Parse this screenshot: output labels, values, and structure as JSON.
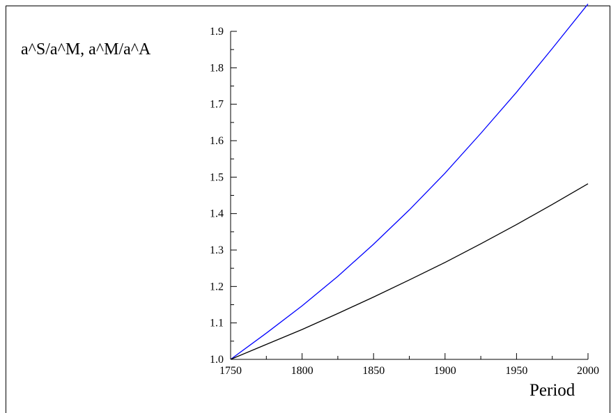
{
  "chart_data": {
    "type": "line",
    "title": "",
    "xlabel": "Period",
    "ylabel": "a^S/a^M, a^M/a^A",
    "xlim": [
      1750,
      2000
    ],
    "ylim": [
      1.0,
      1.9
    ],
    "x_ticks": [
      "1750",
      "1800",
      "1850",
      "1900",
      "1950",
      "2000"
    ],
    "y_ticks": [
      "1.0",
      "1.1",
      "1.2",
      "1.3",
      "1.4",
      "1.5",
      "1.6",
      "1.7",
      "1.8",
      "1.9"
    ],
    "grid": false,
    "legend": "none",
    "x": [
      1750,
      1775,
      1800,
      1825,
      1850,
      1875,
      1900,
      1925,
      1950,
      1975,
      2000
    ],
    "series": [
      {
        "color": "#0000ff",
        "values": [
          1.0,
          1.072,
          1.147,
          1.228,
          1.316,
          1.41,
          1.511,
          1.62,
          1.733,
          1.853,
          1.975
        ]
      },
      {
        "color": "#000000",
        "values": [
          1.0,
          1.041,
          1.082,
          1.126,
          1.171,
          1.218,
          1.266,
          1.317,
          1.37,
          1.425,
          1.482
        ]
      }
    ]
  }
}
